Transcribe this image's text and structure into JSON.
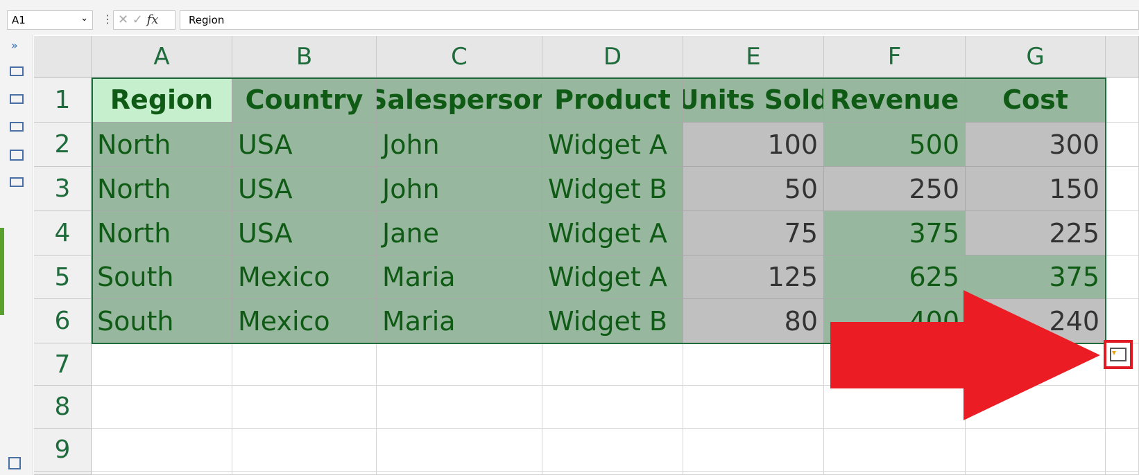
{
  "formula_bar": {
    "name_box": "A1",
    "formula": "Region"
  },
  "sheet": {
    "columns": [
      "A",
      "B",
      "C",
      "D",
      "E",
      "F",
      "G"
    ],
    "row_headers": [
      1,
      2,
      3,
      4,
      5,
      6,
      7,
      8,
      9
    ],
    "header": [
      "Region",
      "Country",
      "Salesperson",
      "Product",
      "Units Sold",
      "Revenue",
      "Cost"
    ],
    "rows": [
      [
        "North",
        "USA",
        "John",
        "Widget A",
        100,
        500,
        300
      ],
      [
        "North",
        "USA",
        "John",
        "Widget B",
        50,
        250,
        150
      ],
      [
        "North",
        "USA",
        "Jane",
        "Widget A",
        75,
        375,
        225
      ],
      [
        "South",
        "Mexico",
        "Maria",
        "Widget A",
        125,
        625,
        375
      ],
      [
        "South",
        "Mexico",
        "Maria",
        "Widget B",
        80,
        400,
        240
      ]
    ]
  }
}
